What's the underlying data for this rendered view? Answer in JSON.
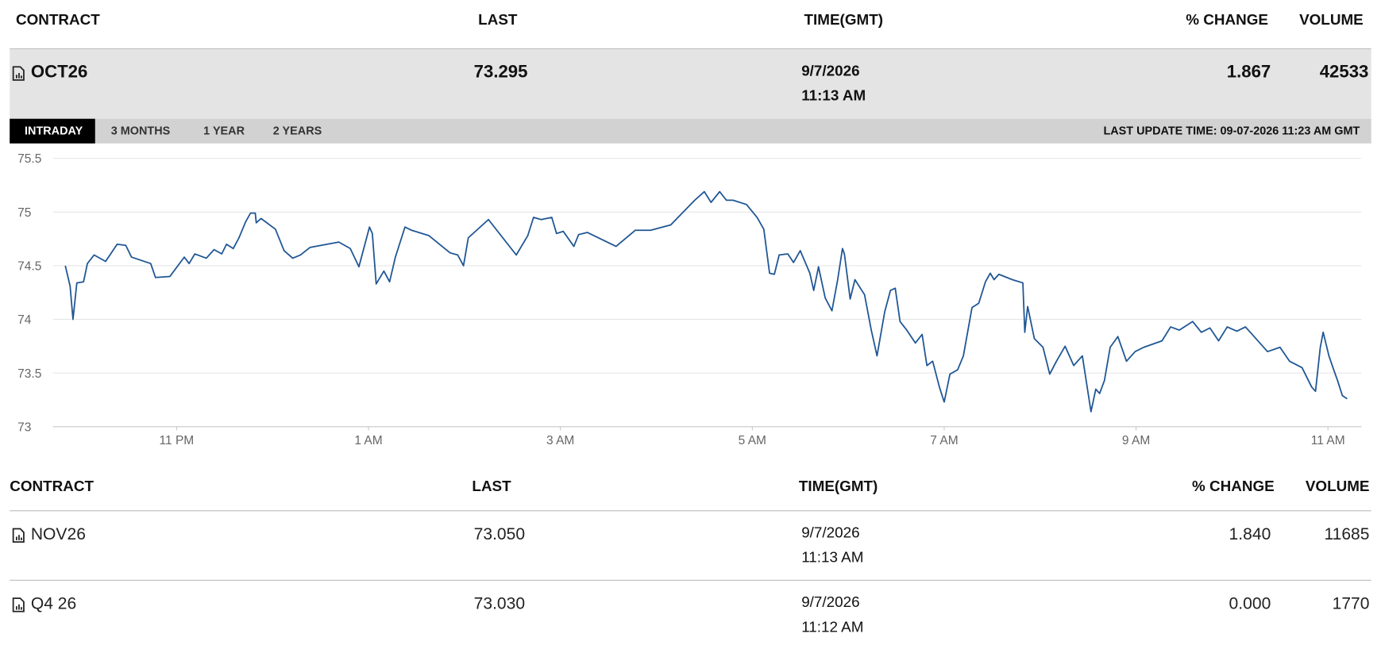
{
  "header": {
    "contract": "CONTRACT",
    "last": "LAST",
    "time": "TIME(GMT)",
    "change": "% CHANGE",
    "volume": "VOLUME"
  },
  "selected": {
    "contract": "OCT26",
    "last": "73.295",
    "date": "9/7/2026",
    "time": "11:13 AM",
    "change": "1.867",
    "volume": "42533"
  },
  "tabs": [
    "INTRADAY",
    "3 MONTHS",
    "1 YEAR",
    "2 YEARS"
  ],
  "active_tab": 0,
  "last_update": "LAST UPDATE TIME: 09-07-2026 11:23 AM GMT",
  "chart_data": {
    "type": "line",
    "color": "#1f5694",
    "grid": true,
    "xlim": [
      21.71,
      35.35
    ],
    "xticks": [
      {
        "value": 23,
        "label": "11 PM"
      },
      {
        "value": 25,
        "label": "1 AM"
      },
      {
        "value": 27,
        "label": "3 AM"
      },
      {
        "value": 29,
        "label": "5 AM"
      },
      {
        "value": 31,
        "label": "7 AM"
      },
      {
        "value": 33,
        "label": "9 AM"
      },
      {
        "value": 35,
        "label": "11 AM"
      }
    ],
    "ylim": [
      73,
      75.5
    ],
    "yticks": [
      73,
      73.5,
      74,
      74.5,
      75,
      75.5
    ],
    "x": [
      21.84,
      21.89,
      21.92,
      21.96,
      22.03,
      22.07,
      22.14,
      22.26,
      22.38,
      22.47,
      22.53,
      22.73,
      22.78,
      22.93,
      23.08,
      23.13,
      23.19,
      23.31,
      23.39,
      23.47,
      23.52,
      23.59,
      23.65,
      23.72,
      23.77,
      23.82,
      23.83,
      23.88,
      24.03,
      24.12,
      24.21,
      24.29,
      24.39,
      24.69,
      24.81,
      24.9,
      25.01,
      25.04,
      25.08,
      25.16,
      25.22,
      25.28,
      25.38,
      25.45,
      25.63,
      25.85,
      25.93,
      25.99,
      26.04,
      26.25,
      26.54,
      26.66,
      26.72,
      26.8,
      26.91,
      26.96,
      27.03,
      27.14,
      27.19,
      27.28,
      27.58,
      27.78,
      27.94,
      28.15,
      28.4,
      28.5,
      28.57,
      28.66,
      28.73,
      28.8,
      28.94,
      29.05,
      29.12,
      29.18,
      29.23,
      29.28,
      29.37,
      29.43,
      29.5,
      29.6,
      29.64,
      29.69,
      29.76,
      29.83,
      29.89,
      29.94,
      29.96,
      30.02,
      30.07,
      30.17,
      30.24,
      30.3,
      30.38,
      30.44,
      30.49,
      30.54,
      30.61,
      30.7,
      30.77,
      30.82,
      30.88,
      30.95,
      31.0,
      31.06,
      31.14,
      31.2,
      31.29,
      31.36,
      31.43,
      31.48,
      31.52,
      31.57,
      31.71,
      31.82,
      31.84,
      31.87,
      31.94,
      32.03,
      32.1,
      32.17,
      32.26,
      32.35,
      32.44,
      32.53,
      32.58,
      32.62,
      32.67,
      32.73,
      32.81,
      32.9,
      32.99,
      33.08,
      33.27,
      33.36,
      33.45,
      33.59,
      33.68,
      33.77,
      33.86,
      33.95,
      34.05,
      34.14,
      34.23,
      34.37,
      34.5,
      34.6,
      34.73,
      34.83,
      34.87,
      34.92,
      34.95,
      35.01,
      35.06,
      35.1,
      35.15,
      35.2
    ],
    "values": [
      74.5,
      74.31,
      74.0,
      74.34,
      74.35,
      74.52,
      74.6,
      74.54,
      74.7,
      74.69,
      74.58,
      74.52,
      74.39,
      74.4,
      74.58,
      74.52,
      74.61,
      74.57,
      74.65,
      74.61,
      74.7,
      74.66,
      74.76,
      74.91,
      74.99,
      74.99,
      74.9,
      74.94,
      74.84,
      74.64,
      74.57,
      74.6,
      74.67,
      74.72,
      74.66,
      74.49,
      74.86,
      74.8,
      74.33,
      74.45,
      74.35,
      74.58,
      74.86,
      74.83,
      74.78,
      74.62,
      74.6,
      74.5,
      74.76,
      74.93,
      74.6,
      74.78,
      74.95,
      74.93,
      74.95,
      74.8,
      74.82,
      74.68,
      74.79,
      74.81,
      74.68,
      74.83,
      74.83,
      74.88,
      75.11,
      75.19,
      75.09,
      75.19,
      75.11,
      75.11,
      75.07,
      74.95,
      74.84,
      74.43,
      74.42,
      74.6,
      74.61,
      74.53,
      74.64,
      74.43,
      74.27,
      74.49,
      74.2,
      74.08,
      74.37,
      74.66,
      74.61,
      74.19,
      74.37,
      74.23,
      73.9,
      73.66,
      74.07,
      74.27,
      74.29,
      73.98,
      73.9,
      73.78,
      73.86,
      73.57,
      73.61,
      73.37,
      73.23,
      73.49,
      73.53,
      73.66,
      74.11,
      74.15,
      74.35,
      74.43,
      74.37,
      74.42,
      74.37,
      74.34,
      73.88,
      74.12,
      73.82,
      73.74,
      73.49,
      73.61,
      73.75,
      73.57,
      73.66,
      73.14,
      73.35,
      73.31,
      73.43,
      73.74,
      73.84,
      73.61,
      73.7,
      73.74,
      73.8,
      73.93,
      73.9,
      73.98,
      73.88,
      73.92,
      73.8,
      73.93,
      73.89,
      73.93,
      73.84,
      73.7,
      73.74,
      73.61,
      73.55,
      73.37,
      73.33,
      73.74,
      73.88,
      73.66,
      73.53,
      73.43,
      73.29,
      73.26
    ]
  },
  "table": {
    "header": {
      "contract": "CONTRACT",
      "last": "LAST",
      "time": "TIME(GMT)",
      "change": "% CHANGE",
      "volume": "VOLUME"
    },
    "rows": [
      {
        "contract": "NOV26",
        "last": "73.050",
        "date": "9/7/2026",
        "time": "11:13 AM",
        "change": "1.840",
        "volume": "11685"
      },
      {
        "contract": "Q4 26",
        "last": "73.030",
        "date": "9/7/2026",
        "time": "11:12 AM",
        "change": "0.000",
        "volume": "1770"
      }
    ]
  }
}
